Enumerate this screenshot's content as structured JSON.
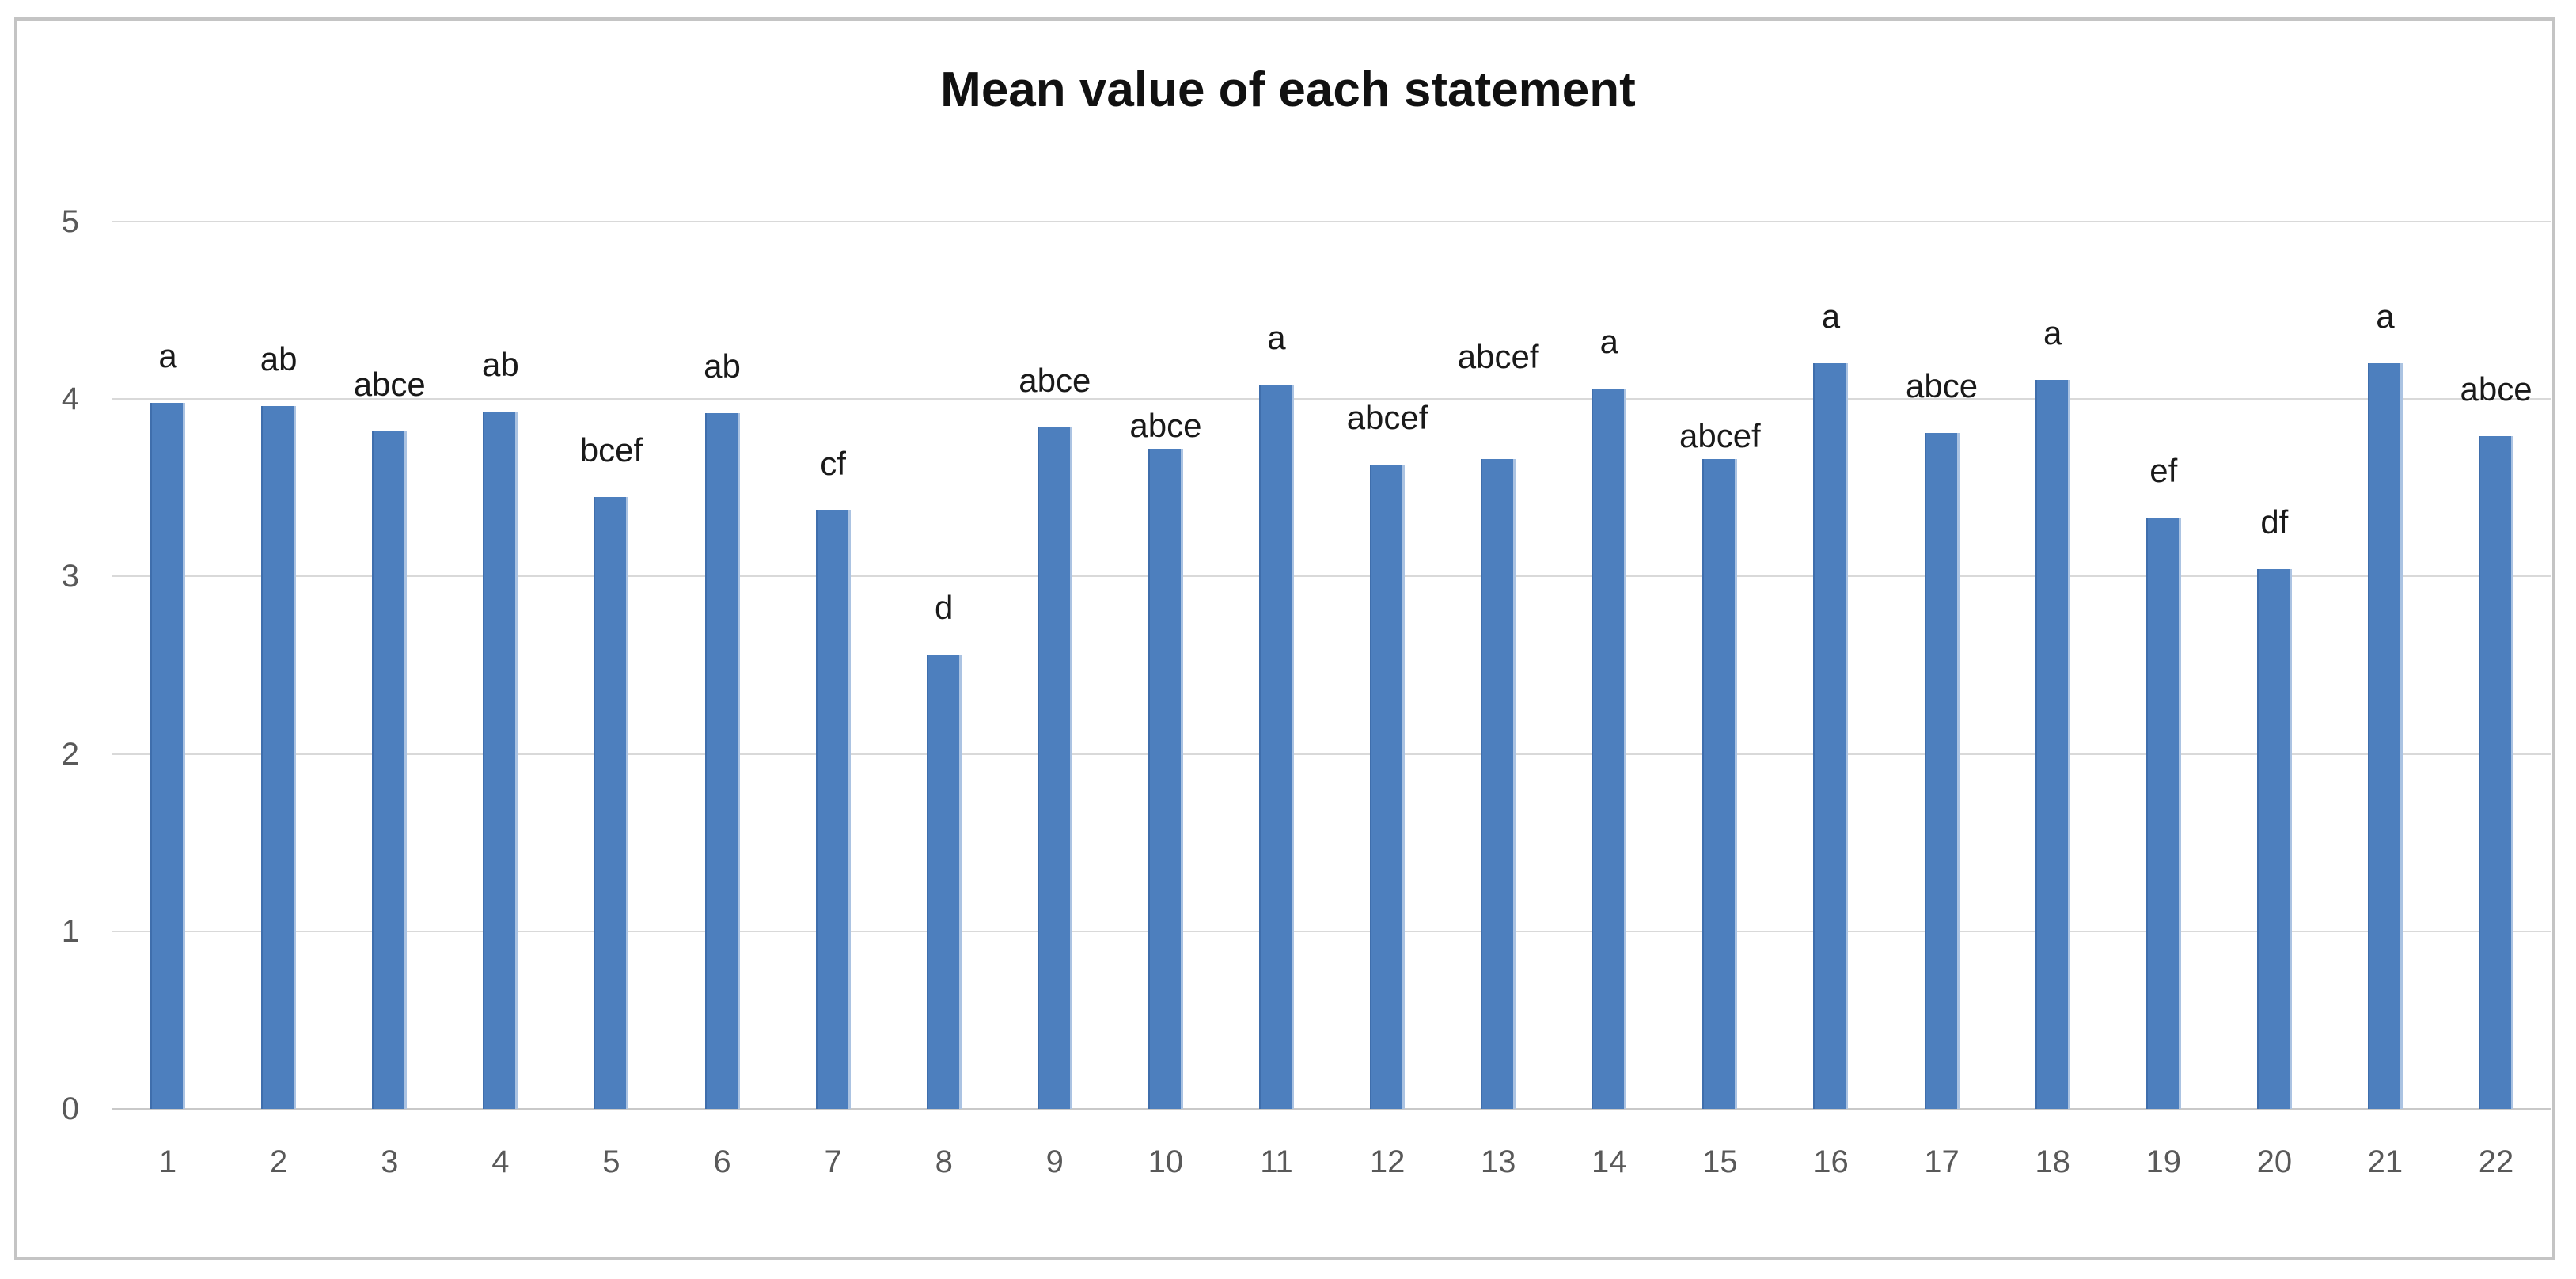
{
  "chart_data": {
    "type": "bar",
    "title": "Mean value of each statement",
    "categories": [
      "1",
      "2",
      "3",
      "4",
      "5",
      "6",
      "7",
      "8",
      "9",
      "10",
      "11",
      "12",
      "13",
      "14",
      "15",
      "16",
      "17",
      "18",
      "19",
      "20",
      "21",
      "22"
    ],
    "values": [
      3.98,
      3.96,
      3.82,
      3.93,
      3.45,
      3.92,
      3.37,
      2.56,
      3.84,
      3.72,
      4.08,
      3.63,
      3.66,
      4.06,
      3.66,
      4.2,
      3.81,
      4.11,
      3.33,
      3.04,
      4.2,
      3.79
    ],
    "point_labels": [
      "a",
      "ab",
      "abce",
      "ab",
      "bcef",
      "ab",
      "cf",
      "d",
      "abce",
      "abce",
      "a",
      "abcef",
      "abcef",
      "a",
      "abcef",
      "a",
      "abce",
      "a",
      "ef",
      "df",
      "a",
      "abce"
    ],
    "xlabel": "",
    "ylabel": "",
    "ylim": [
      0,
      5
    ],
    "yticks": [
      0,
      1,
      2,
      3,
      4,
      5
    ],
    "grid": "horizontal-on",
    "legend": "none",
    "bar_color": "#4d7fbe",
    "bar_edge_dark": "#3f6eac",
    "bar_edge_light": "#abc3e2",
    "gridline_color": "#d9d9d9",
    "baseline_color": "#c9c9c9",
    "frame_border_color": "#c4c4c4",
    "title_color": "#111111",
    "tick_label_color": "#595959",
    "point_label_color": "#1a1a1a",
    "label_gap_default": 38,
    "label_gap_overrides": {
      "10": 8,
      "13": 108,
      "15": 8
    }
  }
}
